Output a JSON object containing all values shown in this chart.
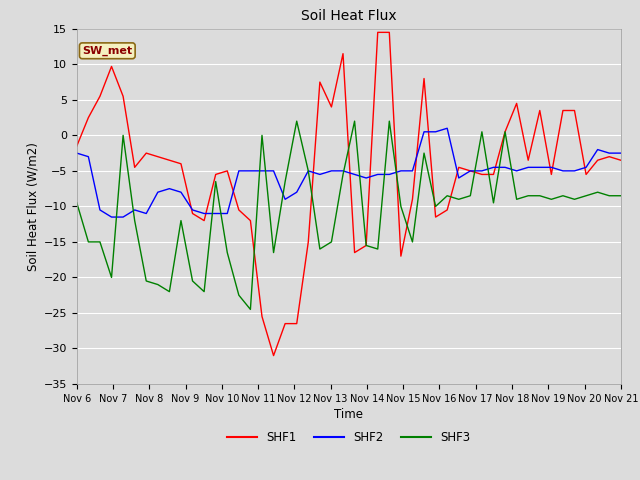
{
  "title": "Soil Heat Flux",
  "xlabel": "Time",
  "ylabel": "Soil Heat Flux (W/m2)",
  "ylim": [
    -35,
    15
  ],
  "yticks": [
    -35,
    -30,
    -25,
    -20,
    -15,
    -10,
    -5,
    0,
    5,
    10,
    15
  ],
  "annotation_label": "SW_met",
  "bg_color": "#dcdcdc",
  "plot_bg_color": "#dcdcdc",
  "legend_entries": [
    "SHF1",
    "SHF2",
    "SHF3"
  ],
  "line_colors": [
    "red",
    "blue",
    "green"
  ],
  "x_tick_labels": [
    "Nov 6",
    "Nov 7",
    "Nov 8",
    "Nov 9",
    "Nov 10",
    "Nov 11",
    "Nov 12",
    "Nov 13",
    "Nov 14",
    "Nov 15",
    "Nov 16",
    "Nov 17",
    "Nov 18",
    "Nov 19",
    "Nov 20",
    "Nov 21"
  ],
  "shf1": [
    -1.5,
    2.5,
    5.5,
    9.7,
    5.5,
    -4.5,
    -2.5,
    -3.0,
    -3.5,
    -4.0,
    -11.0,
    -12.0,
    -5.5,
    -5.0,
    -10.5,
    -12.0,
    -25.5,
    -31.0,
    -26.5,
    -26.5,
    -15.0,
    7.5,
    4.0,
    11.5,
    -16.5,
    -15.5,
    14.5,
    14.5,
    -17.0,
    -9.0,
    8.0,
    -11.5,
    -10.5,
    -4.5,
    -5.0,
    -5.5,
    -5.5,
    0.5,
    4.5,
    -3.5,
    3.5,
    -5.5,
    3.5,
    3.5,
    -5.5,
    -3.5,
    -3.0,
    -3.5
  ],
  "shf2": [
    -2.5,
    -3.0,
    -10.5,
    -11.5,
    -11.5,
    -10.5,
    -11.0,
    -8.0,
    -7.5,
    -8.0,
    -10.5,
    -11.0,
    -11.0,
    -11.0,
    -5.0,
    -5.0,
    -5.0,
    -5.0,
    -9.0,
    -8.0,
    -5.0,
    -5.5,
    -5.0,
    -5.0,
    -5.5,
    -6.0,
    -5.5,
    -5.5,
    -5.0,
    -5.0,
    0.5,
    0.5,
    1.0,
    -6.0,
    -5.0,
    -5.0,
    -4.5,
    -4.5,
    -5.0,
    -4.5,
    -4.5,
    -4.5,
    -5.0,
    -5.0,
    -4.5,
    -2.0,
    -2.5,
    -2.5
  ],
  "shf3": [
    -9.5,
    -15.0,
    -15.0,
    -20.0,
    0.0,
    -12.0,
    -20.5,
    -21.0,
    -22.0,
    -12.0,
    -20.5,
    -22.0,
    -6.5,
    -16.5,
    -22.5,
    -24.5,
    0.0,
    -16.5,
    -6.5,
    2.0,
    -5.0,
    -16.0,
    -15.0,
    -5.5,
    2.0,
    -15.5,
    -16.0,
    2.0,
    -10.0,
    -15.0,
    -2.5,
    -10.0,
    -8.5,
    -9.0,
    -8.5,
    0.5,
    -9.5,
    0.5,
    -9.0,
    -8.5,
    -8.5,
    -9.0,
    -8.5,
    -9.0,
    -8.5,
    -8.0,
    -8.5,
    -8.5
  ]
}
